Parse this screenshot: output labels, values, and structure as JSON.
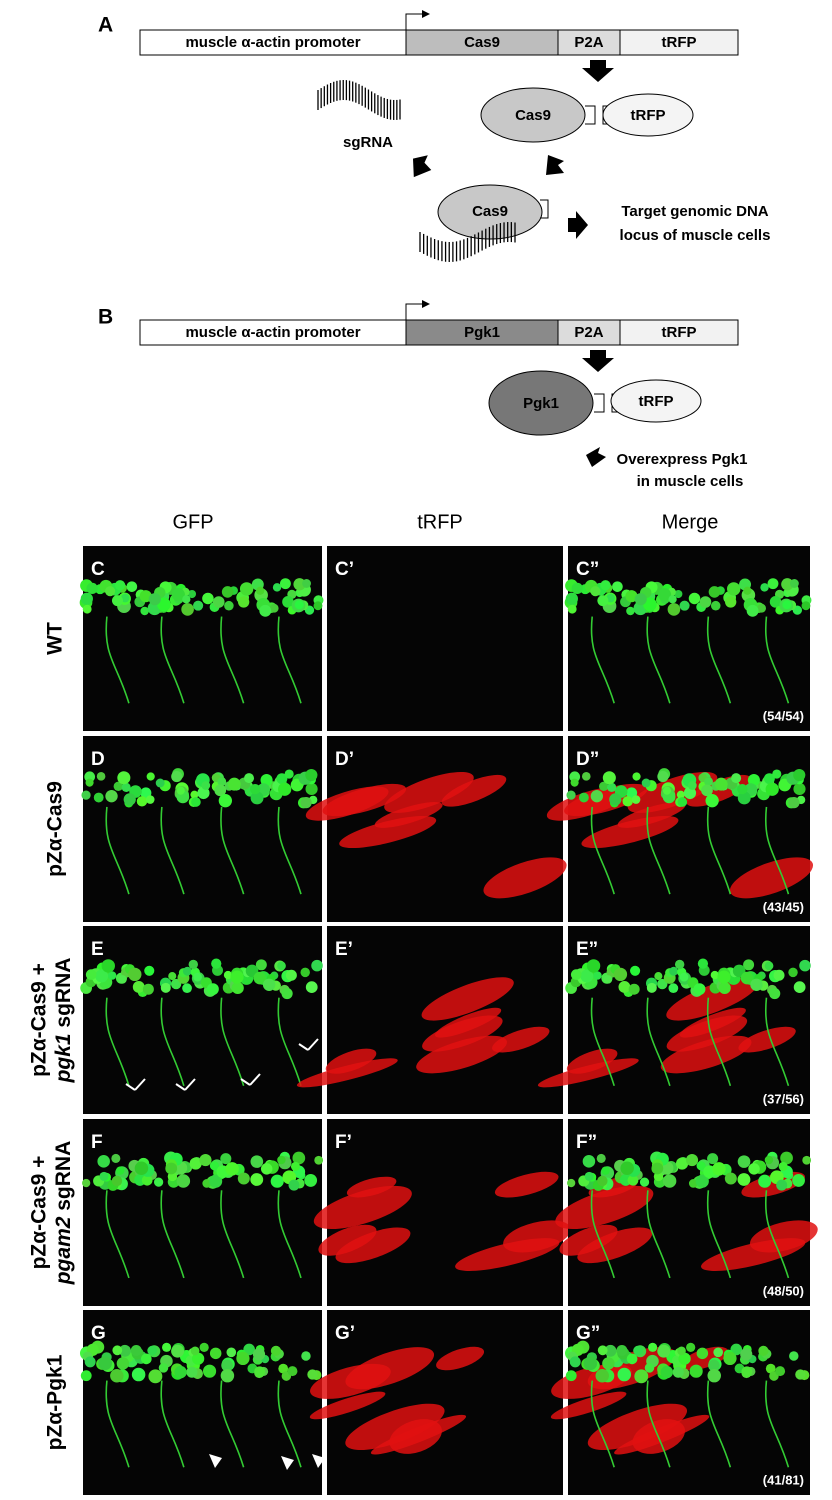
{
  "panel_a": {
    "letter": "A",
    "segments": [
      "muscle α-actin promoter",
      "Cas9",
      "P2A",
      "tRFP"
    ],
    "protein": "Cas9",
    "tag": "tRFP",
    "guide": "sgRNA",
    "complex": "Cas9",
    "result": [
      "Target genomic DNA",
      "locus of muscle cells"
    ]
  },
  "panel_b": {
    "letter": "B",
    "segments": [
      "muscle α-actin promoter",
      "Pgk1",
      "P2A",
      "tRFP"
    ],
    "protein": "Pgk1",
    "tag": "tRFP",
    "result": [
      "Overexpress Pgk1",
      "in muscle cells"
    ]
  },
  "grid": {
    "columns": [
      "GFP",
      "tRFP",
      "Merge"
    ],
    "rows": [
      {
        "label": "WT",
        "panels": [
          "C",
          "C’",
          "C”"
        ],
        "count": "(54/54)"
      },
      {
        "label": "pZα-Cas9",
        "panels": [
          "D",
          "D’",
          "D”"
        ],
        "count": "(43/45)"
      },
      {
        "label": "pZα-Cas9 +",
        "gene": "pgk1",
        "suffix": " sgRNA",
        "panels": [
          "E",
          "E’",
          "E”"
        ],
        "count": "(37/56)"
      },
      {
        "label": "pZα-Cas9 +",
        "gene": "pgam2",
        "suffix": " sgRNA",
        "panels": [
          "F",
          "F’",
          "F”"
        ],
        "count": "(48/50)"
      },
      {
        "label": "pZα-Pgk1",
        "panels": [
          "G",
          "G’",
          "G”"
        ],
        "count": "(41/81)"
      }
    ]
  }
}
